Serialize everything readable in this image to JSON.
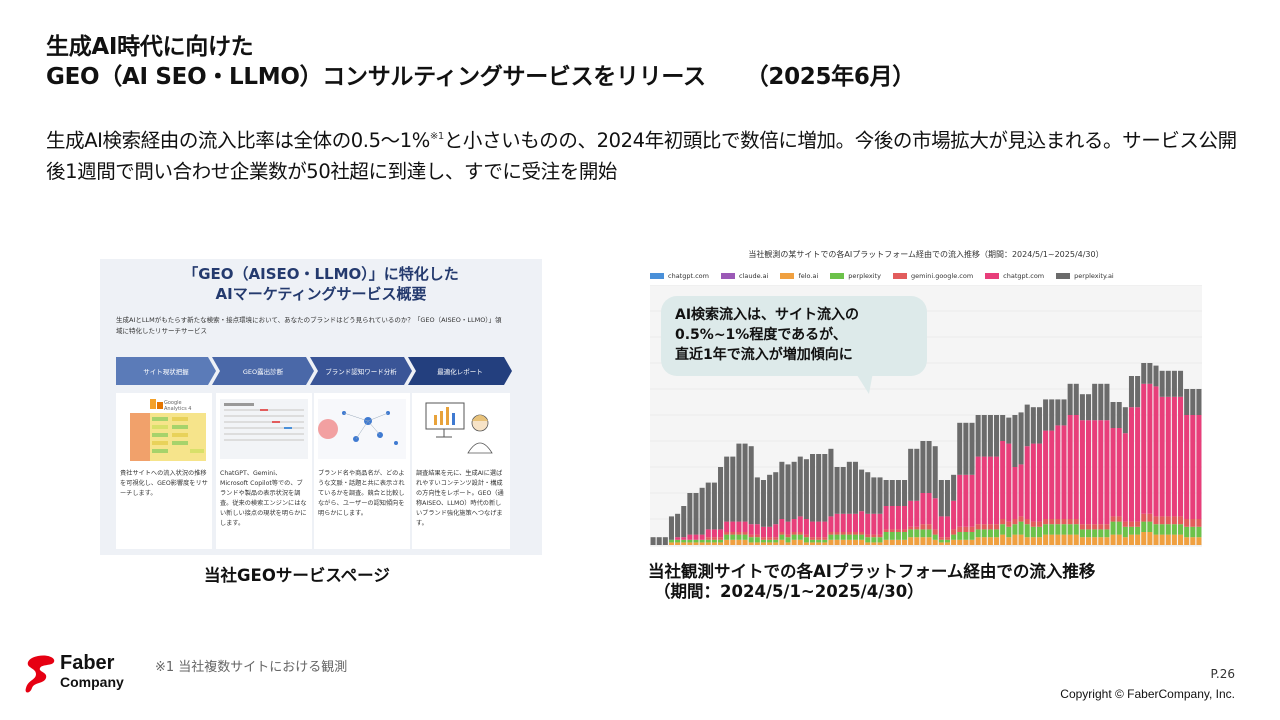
{
  "title": {
    "line1": "生成AI時代に向けた",
    "line2": "GEO（AI SEO・LLMO）コンサルティングサービスをリリース",
    "date": "（2025年6月）"
  },
  "lead": {
    "text_a": "生成AI検索経由の流入比率は全体の0.5～1%",
    "note_mark": "※1",
    "text_b": "と小さいものの、2024年初頭比で数倍に増加。今後の市場拡大が見込まれる。サービス公開後1週間で問い合わせ企業数が50社超に到達し、すでに受注を開始"
  },
  "screenshot": {
    "heading_1": "「GEO（AISEO・LLMO）」に特化した",
    "heading_2": "AIマーケティングサービス概要",
    "desc": "生成AIとLLMがもたらす新たな検索・接点環境において、あなたのブランドはどう見られているのか？「GEO（AISEO・LLMO）」領域に特化したリサーチサービス",
    "steps": [
      "サイト現状把握",
      "GEO露出診断",
      "ブランド認知ワード分析",
      "最適化レポート"
    ],
    "ga_label_1": "Google",
    "ga_label_2": "Analytics 4",
    "cards": [
      "貴社サイトへの流入状況の推移を可視化し、GEO影響度をリサーチします。",
      "ChatGPT、Gemini、Microsoft Copilot等での、ブランドや製品の表示状況を調査。従来の検索エンジンにはない新しい接点の現状を明らかにします。",
      "ブランド名や商品名が、どのような文脈・話題と共に表示されているかを調査。競合と比較しながら、ユーザーの認知傾向を明らかにします。",
      "調査結果を元に、生成AIに選ばれやすいコンテンツ設計・構成の方向性をレポート。GEO（通称AISEO、LLMO）時代の新しいブランド強化施策へつなげます。"
    ],
    "caption": "当社GEOサービスページ"
  },
  "chart_data": {
    "type": "bar",
    "stacked": true,
    "title": "当社観測の某サイトでの各AIプラットフォーム経由での流入推移（期間：2024/5/1~2025/4/30）",
    "legend_placement": "top",
    "grid": true,
    "ylim": [
      0,
      100
    ],
    "legend": [
      {
        "name": "chatgpt.com",
        "color": "#4a90d9"
      },
      {
        "name": "claude.ai",
        "color": "#9b59b6"
      },
      {
        "name": "felo.ai",
        "color": "#f0a040"
      },
      {
        "name": "perplexity",
        "color": "#6cc24a"
      },
      {
        "name": "gemini.google.com",
        "color": "#e25c5c"
      },
      {
        "name": "chatgpt.com",
        "color": "#e83e7a"
      },
      {
        "name": "perplexity.ai",
        "color": "#6b6b6b"
      }
    ],
    "stack_series": [
      {
        "name": "felo.ai",
        "color": "#f0a040",
        "values": [
          0,
          0,
          0,
          1,
          1,
          1,
          1,
          1,
          1,
          1,
          1,
          1,
          2,
          2,
          2,
          2,
          1,
          1,
          1,
          1,
          1,
          2,
          1,
          2,
          2,
          1,
          1,
          1,
          1,
          2,
          2,
          2,
          2,
          2,
          2,
          1,
          1,
          1,
          2,
          2,
          2,
          2,
          3,
          3,
          3,
          3,
          2,
          1,
          1,
          2,
          2,
          2,
          2,
          3,
          3,
          3,
          3,
          4,
          3,
          4,
          4,
          3,
          3,
          3,
          4,
          4,
          4,
          4,
          4,
          4,
          3,
          3,
          3,
          3,
          3,
          4,
          4,
          3,
          4,
          4,
          5,
          5,
          4,
          4,
          4,
          4,
          4,
          3,
          3,
          3
        ]
      },
      {
        "name": "perplexity",
        "color": "#6cc24a",
        "values": [
          0,
          0,
          0,
          1,
          1,
          1,
          1,
          1,
          1,
          1,
          1,
          1,
          2,
          2,
          2,
          2,
          2,
          2,
          1,
          1,
          1,
          2,
          2,
          2,
          2,
          2,
          1,
          1,
          1,
          2,
          2,
          2,
          2,
          2,
          2,
          2,
          2,
          2,
          3,
          3,
          3,
          3,
          3,
          3,
          3,
          3,
          2,
          1,
          1,
          2,
          3,
          3,
          3,
          3,
          3,
          3,
          3,
          4,
          4,
          4,
          5,
          5,
          4,
          4,
          4,
          4,
          4,
          4,
          4,
          4,
          3,
          3,
          3,
          3,
          3,
          5,
          5,
          4,
          3,
          3,
          4,
          4,
          4,
          4,
          4,
          4,
          4,
          4,
          4,
          4
        ]
      },
      {
        "name": "gemini.google.com",
        "color": "#e25c5c",
        "values": [
          0,
          0,
          0,
          0,
          0,
          0,
          0,
          0,
          0,
          1,
          1,
          1,
          1,
          1,
          1,
          1,
          1,
          1,
          1,
          1,
          1,
          1,
          1,
          1,
          1,
          1,
          1,
          1,
          1,
          1,
          1,
          1,
          1,
          1,
          1,
          1,
          1,
          1,
          1,
          1,
          1,
          1,
          1,
          1,
          2,
          2,
          2,
          1,
          1,
          2,
          2,
          2,
          2,
          2,
          2,
          2,
          2,
          2,
          2,
          2,
          2,
          2,
          2,
          2,
          2,
          2,
          2,
          2,
          2,
          2,
          2,
          2,
          2,
          2,
          2,
          2,
          2,
          2,
          2,
          2,
          3,
          3,
          3,
          3,
          3,
          3,
          3,
          3,
          3,
          3
        ]
      },
      {
        "name": "chatgpt.com",
        "color": "#e83e7a",
        "values": [
          0,
          0,
          0,
          0,
          1,
          1,
          2,
          2,
          2,
          3,
          3,
          3,
          4,
          4,
          4,
          4,
          4,
          4,
          4,
          4,
          5,
          5,
          5,
          5,
          6,
          6,
          6,
          6,
          6,
          6,
          7,
          7,
          7,
          7,
          8,
          8,
          8,
          8,
          9,
          9,
          9,
          9,
          10,
          10,
          12,
          12,
          12,
          8,
          8,
          11,
          20,
          20,
          20,
          26,
          26,
          26,
          26,
          30,
          30,
          20,
          20,
          28,
          30,
          30,
          34,
          34,
          36,
          36,
          40,
          40,
          40,
          40,
          40,
          40,
          40,
          34,
          34,
          34,
          44,
          44,
          50,
          50,
          50,
          46,
          46,
          46,
          46,
          40,
          40,
          40
        ]
      },
      {
        "name": "perplexity.ai",
        "color": "#6b6b6b",
        "values": [
          3,
          3,
          3,
          9,
          9,
          12,
          16,
          16,
          18,
          18,
          18,
          24,
          25,
          25,
          30,
          30,
          30,
          18,
          18,
          20,
          20,
          22,
          22,
          22,
          23,
          23,
          26,
          26,
          26,
          26,
          18,
          18,
          20,
          20,
          16,
          16,
          14,
          14,
          10,
          10,
          10,
          10,
          20,
          20,
          20,
          20,
          20,
          14,
          14,
          10,
          20,
          20,
          20,
          16,
          16,
          16,
          16,
          10,
          10,
          20,
          20,
          16,
          14,
          14,
          12,
          12,
          10,
          10,
          12,
          12,
          10,
          10,
          14,
          14,
          14,
          10,
          10,
          10,
          12,
          12,
          8,
          8,
          8,
          10,
          10,
          10,
          10,
          10,
          10,
          10
        ]
      }
    ]
  },
  "chart_caption": {
    "line1": "当社観測サイトでの各AIプラットフォーム経由での流入推移",
    "line2": "（期間：2024/5/1~2025/4/30）"
  },
  "callout": {
    "line1": "AI検索流入は、サイト流入の",
    "line2": "0.5%~1%程度であるが、",
    "line3": "直近1年で流入が増加傾向に"
  },
  "footer": {
    "logo_line1": "Faber",
    "logo_line2": "Company",
    "footnote": "※1 当社複数サイトにおける観測",
    "page": "P.26",
    "copyright": "Copyright © FaberCompany, Inc."
  }
}
